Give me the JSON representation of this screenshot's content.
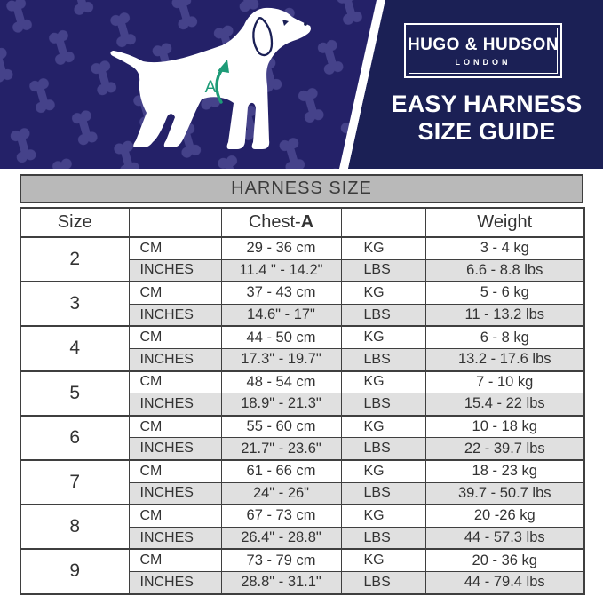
{
  "brand": {
    "name": "HUGO & HUDSON",
    "city": "LONDON"
  },
  "header": {
    "tagline_line1": "EASY HARNESS",
    "tagline_line2": "SIZE GUIDE",
    "measure_label": "A"
  },
  "table": {
    "banner_title": "HARNESS SIZE",
    "headers": {
      "size": "Size",
      "chest_prefix": "Chest-",
      "chest_suffix": "A",
      "weight": "Weight"
    },
    "unit_labels": {
      "cm": "CM",
      "inches": "INCHES",
      "kg": "KG",
      "lbs": "LBS"
    },
    "rows": [
      {
        "size": "2",
        "chest_cm": "29 - 36 cm",
        "chest_in": "11.4 \" - 14.2\"",
        "weight_kg": "3 - 4 kg",
        "weight_lbs": "6.6 - 8.8 lbs"
      },
      {
        "size": "3",
        "chest_cm": "37 - 43 cm",
        "chest_in": "14.6\" - 17\"",
        "weight_kg": "5 - 6 kg",
        "weight_lbs": "11 - 13.2 lbs"
      },
      {
        "size": "4",
        "chest_cm": "44 - 50 cm",
        "chest_in": "17.3\" - 19.7\"",
        "weight_kg": "6 - 8 kg",
        "weight_lbs": "13.2 - 17.6 lbs"
      },
      {
        "size": "5",
        "chest_cm": "48 - 54 cm",
        "chest_in": "18.9\" - 21.3\"",
        "weight_kg": "7 - 10 kg",
        "weight_lbs": "15.4 - 22 lbs"
      },
      {
        "size": "6",
        "chest_cm": "55 - 60 cm",
        "chest_in": "21.7\" - 23.6\"",
        "weight_kg": "10 - 18 kg",
        "weight_lbs": "22 - 39.7 lbs"
      },
      {
        "size": "7",
        "chest_cm": "61 - 66 cm",
        "chest_in": "24\" - 26\"",
        "weight_kg": "18 - 23 kg",
        "weight_lbs": "39.7 - 50.7 lbs"
      },
      {
        "size": "8",
        "chest_cm": "67 - 73 cm",
        "chest_in": "26.4\" - 28.8\"",
        "weight_kg": "20 -26 kg",
        "weight_lbs": "44 - 57.3 lbs"
      },
      {
        "size": "9",
        "chest_cm": "73 - 79 cm",
        "chest_in": "28.8\" - 31.1\"",
        "weight_kg": "20 - 36 kg",
        "weight_lbs": "44 - 79.4 lbs"
      }
    ]
  },
  "colors": {
    "navy_panel": "#1b2055",
    "pattern_bg": "#242168",
    "bone": "#45428a",
    "accent_green": "#1d9b77",
    "banner_bg": "#b9b9b9",
    "row_shade": "#e0e0e0",
    "border": "#3f3f3f",
    "text": "#333333"
  }
}
